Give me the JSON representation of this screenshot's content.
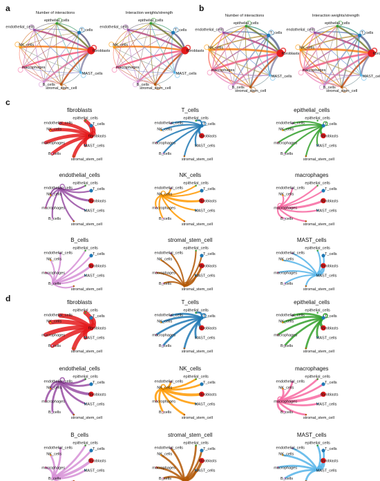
{
  "panel_labels": [
    "a",
    "b",
    "c",
    "d"
  ],
  "network_titles": [
    "Number of interactions",
    "Interaction weights/strength"
  ],
  "cell_types": [
    "fibroblasts",
    "T_cells",
    "epithelial_cells",
    "endothelial_cells",
    "NK_cells",
    "macrophages",
    "stromal_stem_cell",
    "MAST_cells",
    "B_cells"
  ],
  "colors": {
    "fibroblasts": "#e41a1c",
    "T_cells": "#1f78b4",
    "epithelial_cells": "#33a02c",
    "endothelial_cells": "#984ea3",
    "NK_cells": "#ff9900",
    "macrophages": "#f768a1",
    "B_cells": "#d68fd6",
    "stromal_stem_cell": "#b35806",
    "MAST_cells": "#56b4e9"
  },
  "panel_c": {
    "order": [
      "fibroblasts",
      "T_cells",
      "epithelial_cells",
      "endothelial_cells",
      "NK_cells",
      "macrophages",
      "B_cells",
      "stromal_stem_cell",
      "MAST_cells"
    ]
  },
  "panel_d": {
    "order": [
      "fibroblasts",
      "T_cells",
      "epithelial_cells",
      "endothelial_cells",
      "NK_cells",
      "macrophages",
      "B_cells",
      "stromal_stem_cell",
      "MAST_cells"
    ]
  }
}
